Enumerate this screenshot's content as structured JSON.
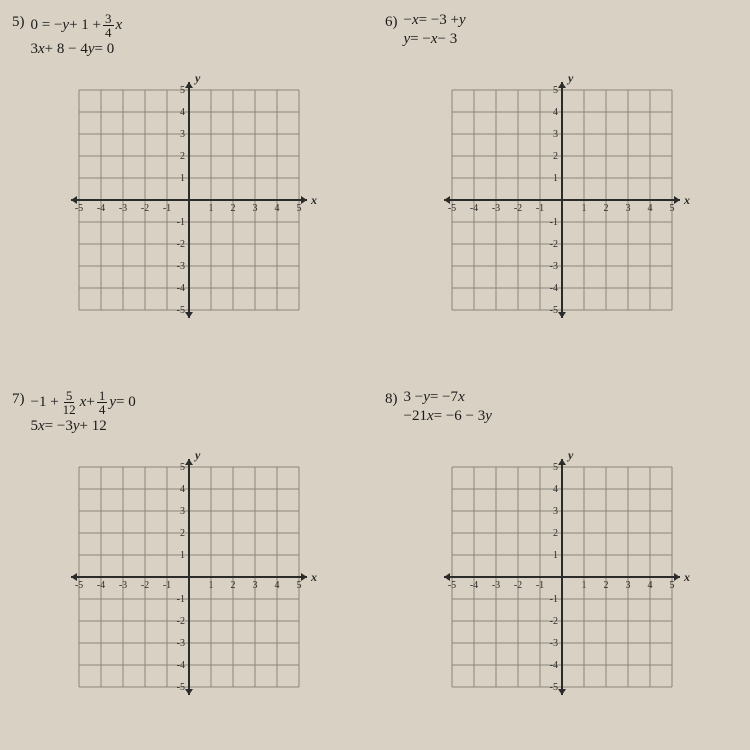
{
  "background_color": "#d9d2c4",
  "grid_color": "#8b8678",
  "axis_color": "#2b2b2b",
  "text_color": "#1a1a1a",
  "font_family": "Times New Roman, serif",
  "grid": {
    "xlim": [
      -5,
      5
    ],
    "ylim": [
      -5,
      5
    ],
    "tick_step": 1,
    "x_axis_label": "x",
    "y_axis_label": "y",
    "x_ticks_neg": [
      "-5",
      "-4",
      "-3",
      "-2",
      "-1"
    ],
    "x_ticks_pos": [
      "1",
      "2",
      "3",
      "4",
      "5"
    ],
    "y_ticks_neg": [
      "-5",
      "-4",
      "-3",
      "-2",
      "-1"
    ],
    "y_ticks_pos": [
      "1",
      "2",
      "3",
      "4",
      "5"
    ]
  },
  "problems": {
    "p5": {
      "number": "5)",
      "eq1_a": "0 = −",
      "eq1_b": " + 1 + ",
      "eq1_frac_n": "3",
      "eq1_frac_d": "4",
      "eq1_var1": "y",
      "eq1_var2": "x",
      "eq2_a": "3",
      "eq2_b": " + 8 − 4",
      "eq2_c": " = 0",
      "eq2_var1": "x",
      "eq2_var2": "y"
    },
    "p6": {
      "number": "6)",
      "eq1_a": "−",
      "eq1_b": " = −3 + ",
      "eq1_var1": "x",
      "eq1_var2": "y",
      "eq2_a": "",
      "eq2_b": " = −",
      "eq2_c": " − 3",
      "eq2_var1": "y",
      "eq2_var2": "x"
    },
    "p7": {
      "number": "7)",
      "eq1_a": "−1 + ",
      "eq1_frac1_n": "5",
      "eq1_frac1_d": "12",
      "eq1_b": " + ",
      "eq1_frac2_n": "1",
      "eq1_frac2_d": "4",
      "eq1_c": " = 0",
      "eq1_var1": "x",
      "eq1_var2": "y",
      "eq2_a": "5",
      "eq2_b": " = −3",
      "eq2_c": " + 12",
      "eq2_var1": "x",
      "eq2_var2": "y"
    },
    "p8": {
      "number": "8)",
      "eq1_a": "3 − ",
      "eq1_b": " = −7",
      "eq1_var1": "y",
      "eq1_var2": "x",
      "eq2_a": "−21",
      "eq2_b": " = −6 − 3",
      "eq2_var1": "x",
      "eq2_var2": "y"
    }
  }
}
